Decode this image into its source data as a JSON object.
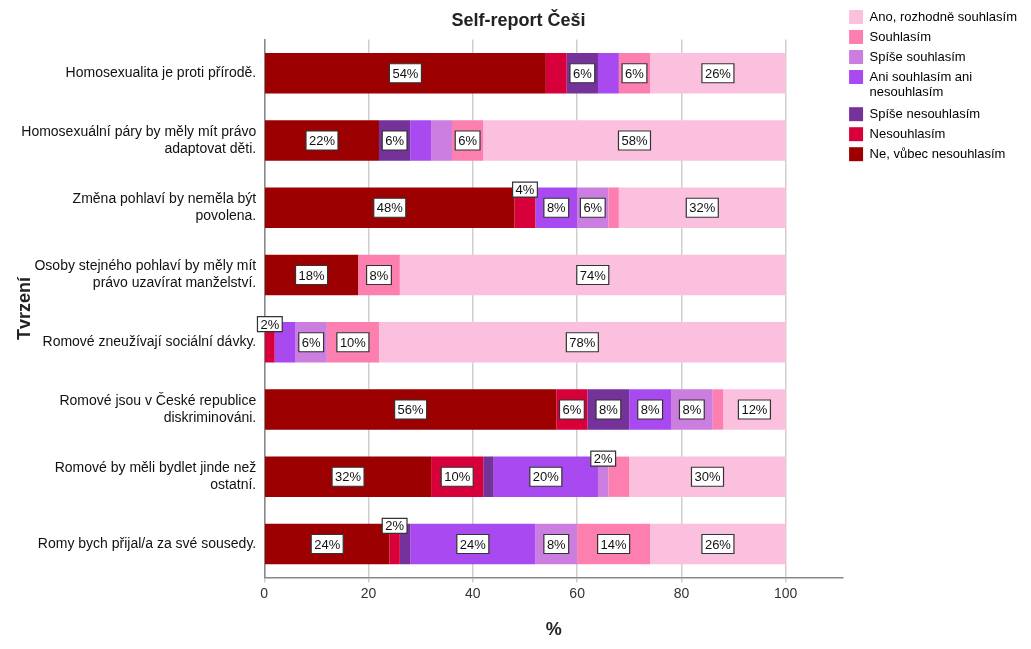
{
  "chart_data": {
    "type": "bar",
    "orientation": "horizontal",
    "stacked": true,
    "title": "Self-report Češi",
    "xlabel": "%",
    "ylabel": "Tvrzení",
    "categories": [
      "Homosexualita je proti přírodě.",
      "Homosexuální páry by měly mít právo adaptovat děti.",
      "Změna pohlaví by neměla být povolena.",
      "Osoby stejného pohlaví by měly mít právo uzavírat manželství.",
      "Romové zneužívají sociální dávky.",
      "Romové jsou v České republice diskriminováni.",
      "Romové by měli bydlet jinde než ostatní.",
      "Romy bych přijal/a za své sousedy."
    ],
    "series": [
      {
        "name": "Ne, vůbec nesouhlasím",
        "color": "#9c0000",
        "values": [
          54,
          22,
          48,
          18,
          0,
          56,
          32,
          24
        ],
        "value_labels": [
          "54%",
          "22%",
          "48%",
          "18%",
          null,
          "56%",
          "32%",
          "24%"
        ]
      },
      {
        "name": "Nesouhlasím",
        "color": "#d8003a",
        "values": [
          4,
          0,
          4,
          0,
          2,
          6,
          10,
          2
        ],
        "value_labels": [
          null,
          null,
          "4%",
          null,
          "2%",
          "6%",
          "10%",
          "2%"
        ]
      },
      {
        "name": "Spíše nesouhlasím",
        "color": "#74329a",
        "values": [
          6,
          6,
          0,
          0,
          0,
          8,
          2,
          2
        ],
        "value_labels": [
          "6%",
          "6%",
          null,
          null,
          null,
          "8%",
          null,
          null
        ]
      },
      {
        "name": "Ani souhlasím ani nesouhlasím",
        "color": "#a94af0",
        "values": [
          4,
          4,
          8,
          0,
          4,
          8,
          20,
          24
        ],
        "value_labels": [
          null,
          null,
          "8%",
          null,
          null,
          "8%",
          "20%",
          "24%"
        ]
      },
      {
        "name": "Spíše souhlasím",
        "color": "#cc7de0",
        "values": [
          0,
          4,
          6,
          0,
          6,
          8,
          2,
          8
        ],
        "value_labels": [
          null,
          null,
          "6%",
          null,
          "6%",
          "8%",
          "2%",
          "8%"
        ]
      },
      {
        "name": "Souhlasím",
        "color": "#fc7fb0",
        "values": [
          6,
          6,
          2,
          8,
          10,
          2,
          4,
          14
        ],
        "value_labels": [
          "6%",
          "6%",
          null,
          "8%",
          "10%",
          null,
          null,
          "14%"
        ]
      },
      {
        "name": "Ano, rozhodně souhlasím",
        "color": "#fcc0df",
        "values": [
          26,
          58,
          32,
          74,
          78,
          12,
          30,
          26
        ],
        "value_labels": [
          "26%",
          "58%",
          "32%",
          "74%",
          "78%",
          "12%",
          "30%",
          "26%"
        ]
      }
    ],
    "xlim": [
      0,
      111
    ],
    "xticks": [
      0,
      20,
      40,
      60,
      80,
      100
    ],
    "grid": "x",
    "legend": "right"
  }
}
